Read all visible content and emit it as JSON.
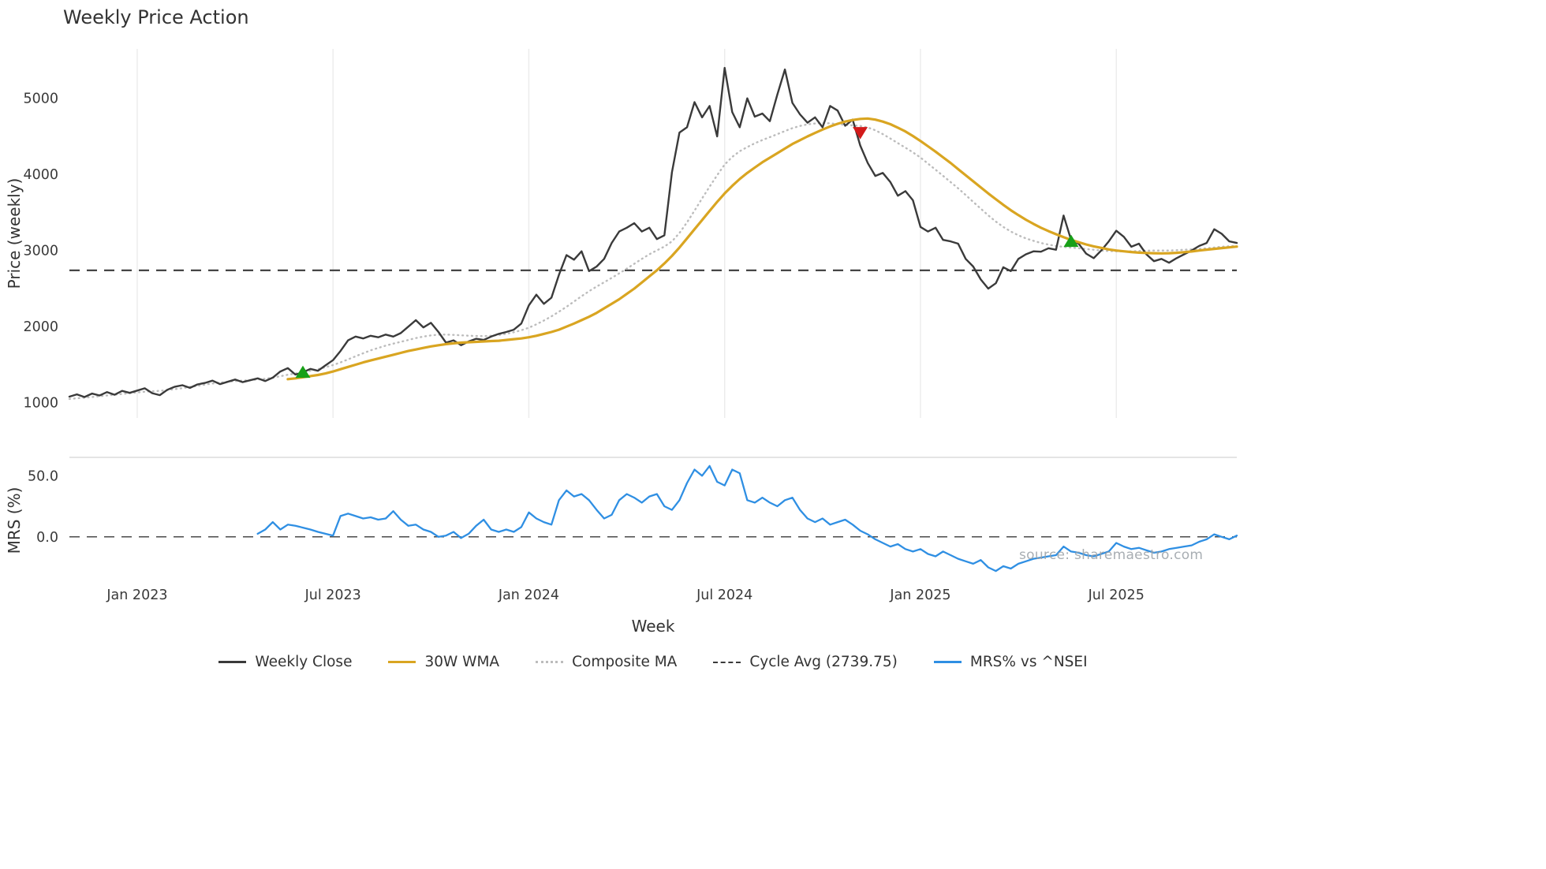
{
  "title": "Weekly Price Action",
  "watermark": "source: sharemaestro.com",
  "legend": [
    {
      "label": "Weekly Close",
      "color": "#3a3a3a",
      "style": "solid"
    },
    {
      "label": "30W WMA",
      "color": "#d9a521",
      "style": "solid"
    },
    {
      "label": "Composite MA",
      "color": "#bcbcbc",
      "style": "dotted"
    },
    {
      "label": "Cycle Avg (2739.75)",
      "color": "#3a3a3a",
      "style": "dashed"
    },
    {
      "label": "MRS% vs ^NSEI",
      "color": "#2f8fe3",
      "style": "solid"
    }
  ],
  "chart_data": {
    "type": "line",
    "title": "Weekly Price Action",
    "xlabel": "Week",
    "n_points": 156,
    "x_ticks": [
      {
        "index": 9,
        "label": "Jan 2023"
      },
      {
        "index": 35,
        "label": "Jul 2023"
      },
      {
        "index": 61,
        "label": "Jan 2024"
      },
      {
        "index": 87,
        "label": "Jul 2024"
      },
      {
        "index": 113,
        "label": "Jan 2025"
      },
      {
        "index": 139,
        "label": "Jul 2025"
      }
    ],
    "panels": [
      {
        "ylabel": "Price (weekly)",
        "ylim": [
          800,
          5650
        ],
        "yticks": [
          1000,
          2000,
          3000,
          4000,
          5000
        ],
        "ytick_labels": [
          "1000",
          "2000",
          "3000",
          "4000",
          "5000"
        ],
        "grid_vertical": true,
        "hlines": [
          {
            "name": "cycle-avg-line",
            "label": "Cycle Avg (2739.75)",
            "value": 2739.75,
            "color": "#3a3a3a",
            "style": "dashed",
            "width": 2.2
          }
        ],
        "series": [
          {
            "name": "Weekly Close",
            "color": "#3a3a3a",
            "style": "solid",
            "width": 2.4,
            "z": 1,
            "start_index": 0,
            "values": [
              1080,
              1110,
              1075,
              1120,
              1095,
              1140,
              1105,
              1155,
              1130,
              1160,
              1190,
              1125,
              1100,
              1170,
              1210,
              1230,
              1195,
              1240,
              1260,
              1290,
              1245,
              1275,
              1305,
              1270,
              1295,
              1320,
              1285,
              1330,
              1410,
              1455,
              1370,
              1400,
              1445,
              1420,
              1490,
              1560,
              1680,
              1820,
              1870,
              1845,
              1880,
              1860,
              1895,
              1870,
              1915,
              2000,
              2085,
              1990,
              2050,
              1930,
              1790,
              1820,
              1755,
              1805,
              1840,
              1825,
              1870,
              1905,
              1930,
              1960,
              2040,
              2280,
              2420,
              2300,
              2380,
              2680,
              2940,
              2880,
              2990,
              2730,
              2790,
              2890,
              3100,
              3250,
              3300,
              3360,
              3250,
              3300,
              3150,
              3200,
              4030,
              4550,
              4620,
              4950,
              4750,
              4900,
              4500,
              5400,
              4820,
              4620,
              5000,
              4760,
              4800,
              4700,
              5050,
              5380,
              4940,
              4790,
              4680,
              4750,
              4620,
              4900,
              4840,
              4640,
              4720,
              4380,
              4150,
              3980,
              4020,
              3900,
              3720,
              3780,
              3660,
              3310,
              3250,
              3300,
              3140,
              3120,
              3090,
              2890,
              2790,
              2620,
              2500,
              2570,
              2780,
              2730,
              2890,
              2950,
              2990,
              2985,
              3030,
              3010,
              3460,
              3140,
              3090,
              2960,
              2900,
              3000,
              3120,
              3260,
              3180,
              3050,
              3090,
              2950,
              2860,
              2890,
              2840,
              2900,
              2950,
              3000,
              3060,
              3100,
              3280,
              3220,
              3120,
              3100
            ]
          },
          {
            "name": "30W WMA",
            "color": "#d9a521",
            "style": "solid",
            "width": 3.2,
            "z": 2,
            "start_index": 29,
            "values": [
              1310,
              1320,
              1335,
              1350,
              1365,
              1385,
              1410,
              1440,
              1470,
              1500,
              1530,
              1555,
              1580,
              1605,
              1630,
              1655,
              1680,
              1700,
              1720,
              1740,
              1755,
              1770,
              1780,
              1790,
              1795,
              1800,
              1805,
              1810,
              1815,
              1825,
              1835,
              1845,
              1860,
              1880,
              1905,
              1930,
              1960,
              2000,
              2040,
              2085,
              2130,
              2180,
              2240,
              2300,
              2360,
              2430,
              2500,
              2580,
              2660,
              2740,
              2830,
              2930,
              3040,
              3160,
              3280,
              3400,
              3520,
              3640,
              3750,
              3850,
              3940,
              4020,
              4090,
              4160,
              4220,
              4280,
              4340,
              4400,
              4450,
              4500,
              4545,
              4590,
              4630,
              4665,
              4695,
              4715,
              4730,
              4735,
              4720,
              4695,
              4660,
              4615,
              4565,
              4505,
              4440,
              4370,
              4300,
              4225,
              4150,
              4070,
              3990,
              3910,
              3830,
              3750,
              3675,
              3600,
              3530,
              3465,
              3405,
              3350,
              3300,
              3255,
              3215,
              3175,
              3140,
              3110,
              3080,
              3055,
              3035,
              3015,
              3000,
              2990,
              2980,
              2972,
              2968,
              2965,
              2963,
              2965,
              2970,
              2978,
              2988,
              3000,
              3012,
              3022,
              3032,
              3042,
              3052
            ]
          },
          {
            "name": "Composite MA",
            "color": "#bcbcbc",
            "style": "dotted",
            "width": 2.4,
            "z": 0,
            "start_index": 0,
            "values": [
              1050,
              1058,
              1066,
              1075,
              1085,
              1095,
              1105,
              1115,
              1125,
              1135,
              1145,
              1150,
              1157,
              1165,
              1178,
              1192,
              1207,
              1222,
              1238,
              1253,
              1265,
              1275,
              1285,
              1291,
              1297,
              1305,
              1315,
              1330,
              1348,
              1368,
              1385,
              1400,
              1420,
              1442,
              1466,
              1495,
              1530,
              1570,
              1610,
              1650,
              1688,
              1720,
              1750,
              1776,
              1800,
              1825,
              1850,
              1870,
              1885,
              1893,
              1895,
              1891,
              1886,
              1881,
              1877,
              1876,
              1880,
              1890,
              1906,
              1926,
              1952,
              1986,
              2030,
              2080,
              2135,
              2196,
              2260,
              2330,
              2400,
              2465,
              2526,
              2582,
              2640,
              2700,
              2762,
              2826,
              2890,
              2950,
              3002,
              3052,
              3120,
              3230,
              3370,
              3525,
              3685,
              3840,
              3990,
              4130,
              4230,
              4305,
              4360,
              4410,
              4452,
              4490,
              4530,
              4570,
              4608,
              4638,
              4658,
              4670,
              4675,
              4672,
              4662,
              4652,
              4645,
              4638,
              4618,
              4580,
              4530,
              4472,
              4412,
              4352,
              4290,
              4222,
              4142,
              4062,
              3982,
              3900,
              3818,
              3730,
              3640,
              3550,
              3462,
              3380,
              3310,
              3250,
              3200,
              3160,
              3128,
              3100,
              3078,
              3060,
              3048,
              3038,
              3030,
              3020,
              3010,
              3000,
              2994,
              2990,
              2988,
              2990,
              2994,
              2998,
              3000,
              3000,
              3000,
              3004,
              3010,
              3016,
              3022,
              3030,
              3040,
              3050,
              3056,
              3062
            ]
          }
        ],
        "markers": [
          {
            "name": "buy-signal-marker",
            "shape": "triangle-up",
            "color": "#18a018",
            "index": 31,
            "value": 1400
          },
          {
            "name": "sell-signal-marker",
            "shape": "triangle-down",
            "color": "#d21a1a",
            "index": 105,
            "value": 4550
          },
          {
            "name": "buy-signal-marker",
            "shape": "triangle-up",
            "color": "#18a018",
            "index": 133,
            "value": 3120
          }
        ]
      },
      {
        "ylabel": "MRS (%)",
        "ylim": [
          -35,
          65
        ],
        "yticks": [
          0,
          50
        ],
        "ytick_labels": [
          "0.0",
          "50.0"
        ],
        "grid_vertical": false,
        "top_border": true,
        "hlines": [
          {
            "name": "mrs-zero-line",
            "value": 0,
            "color": "#4a4a4a",
            "style": "dashed",
            "width": 1.6
          }
        ],
        "series": [
          {
            "name": "MRS% vs ^NSEI",
            "color": "#2f8fe3",
            "style": "solid",
            "width": 2.3,
            "z": 1,
            "start_index": 25,
            "values": [
              2.5,
              6,
              12,
              6,
              10,
              9,
              7.5,
              6,
              4,
              2.5,
              1,
              17,
              19,
              17,
              15,
              16,
              14,
              15,
              21,
              14,
              9,
              10,
              6,
              4,
              0,
              1,
              4,
              -1,
              2.5,
              9,
              14,
              6,
              4,
              6,
              4,
              8,
              20,
              15,
              12,
              10,
              30,
              38,
              33,
              35,
              30,
              22,
              15,
              18,
              30,
              35,
              32,
              28,
              33,
              35,
              25,
              22,
              30,
              44,
              55,
              50,
              58,
              45,
              42,
              55,
              52,
              30,
              28,
              32,
              28,
              25,
              30,
              32,
              22,
              15,
              12,
              15,
              10,
              12,
              14,
              10,
              5,
              2,
              -2,
              -5,
              -8,
              -6,
              -10,
              -12,
              -10,
              -14,
              -16,
              -12,
              -15,
              -18,
              -20,
              -22,
              -19,
              -25,
              -28,
              -24,
              -26,
              -22,
              -20,
              -18,
              -17,
              -16,
              -15,
              -8,
              -12,
              -13,
              -15,
              -16,
              -14,
              -12,
              -5,
              -8,
              -10,
              -9,
              -11,
              -13,
              -12,
              -10,
              -9,
              -8,
              -7,
              -4,
              -2,
              2,
              0,
              -2,
              1
            ]
          }
        ],
        "markers": []
      }
    ]
  }
}
